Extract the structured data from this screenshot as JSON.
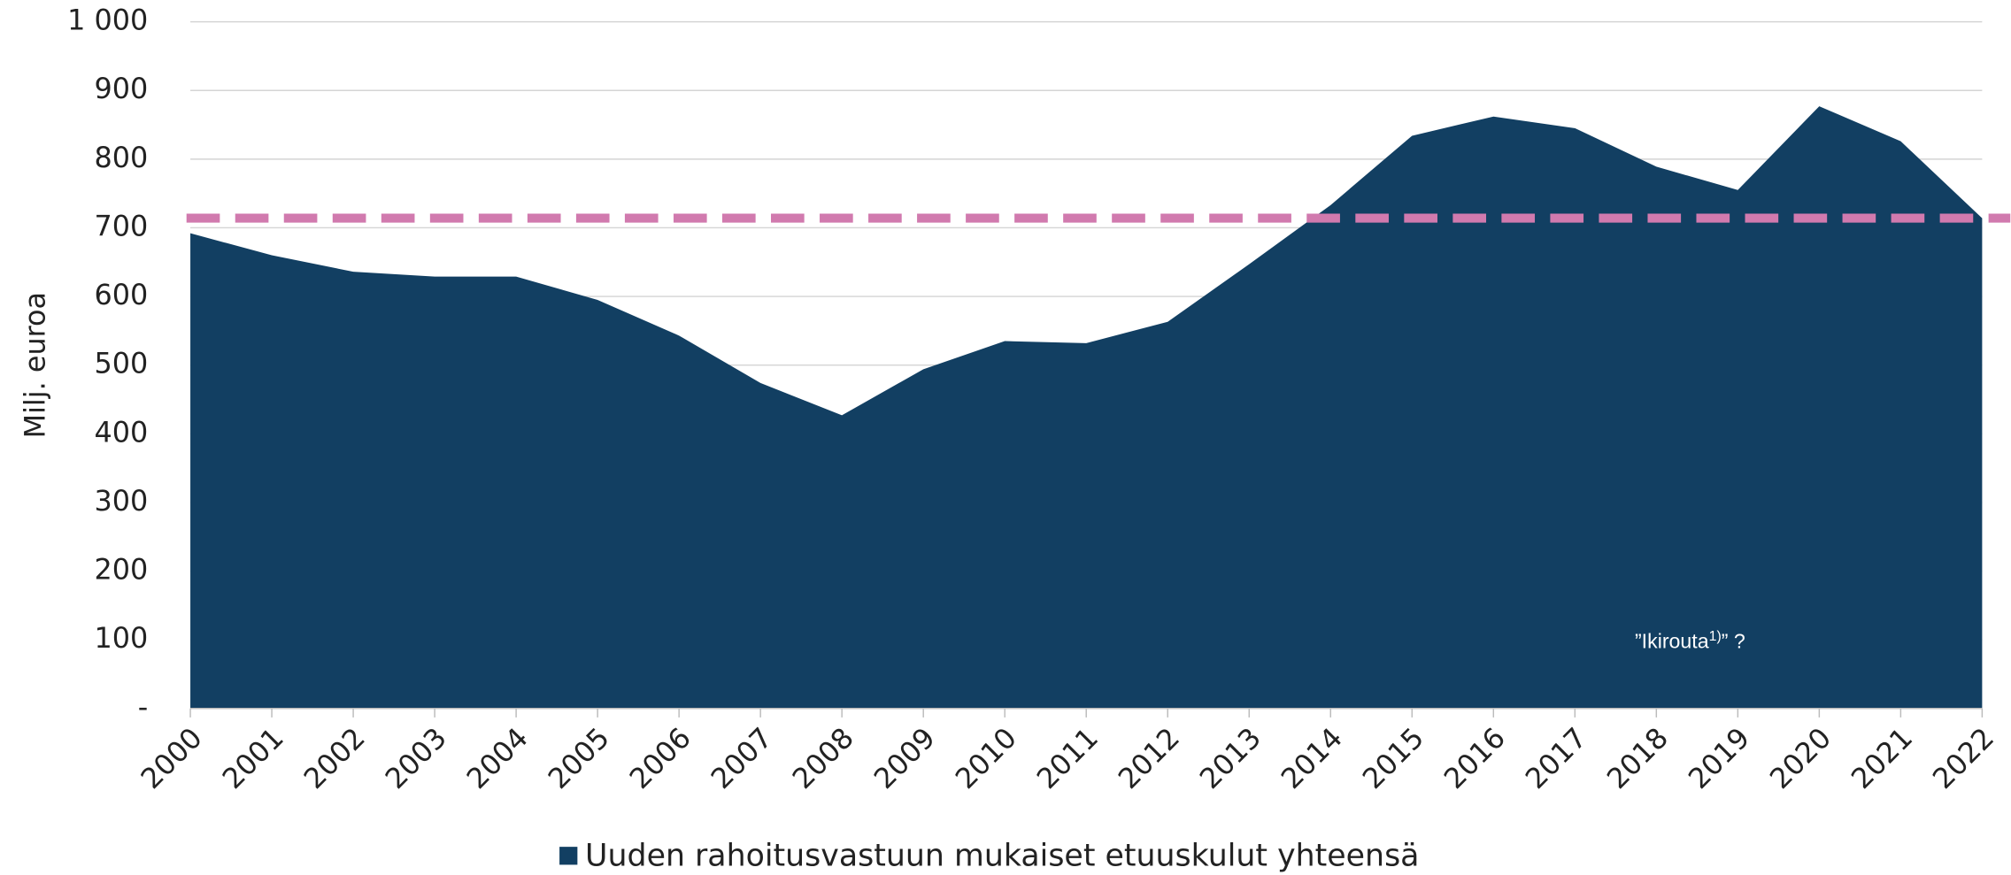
{
  "chart_data": {
    "type": "area",
    "y_label": "Milj. euroa",
    "categories": [
      "2000",
      "2001",
      "2002",
      "2003",
      "2004",
      "2005",
      "2006",
      "2007",
      "2008",
      "2009",
      "2010",
      "2011",
      "2012",
      "2013",
      "2014",
      "2015",
      "2016",
      "2017",
      "2018",
      "2019",
      "2020",
      "2021",
      "2022"
    ],
    "series": [
      {
        "name": "Uuden rahoitusvastuun mukaiset etuuskulut yhteensä",
        "color": "#123f62",
        "values": [
          692,
          660,
          636,
          629,
          629,
          595,
          543,
          474,
          427,
          494,
          535,
          532,
          563,
          647,
          733,
          834,
          862,
          845,
          789,
          755,
          877,
          826,
          714
        ]
      }
    ],
    "ylim": [
      0,
      1000
    ],
    "yticks": [
      {
        "value": 0,
        "label": "-"
      },
      100,
      200,
      300,
      400,
      500,
      600,
      700,
      800,
      900,
      {
        "value": 1000,
        "label": "1 000"
      }
    ],
    "grid": true,
    "reference_line": {
      "value": 714,
      "color": "#d17aae"
    },
    "annotation": {
      "text": "”Ikirouta",
      "sup": "1)",
      "after": "” ?"
    },
    "legend": "bottom"
  }
}
